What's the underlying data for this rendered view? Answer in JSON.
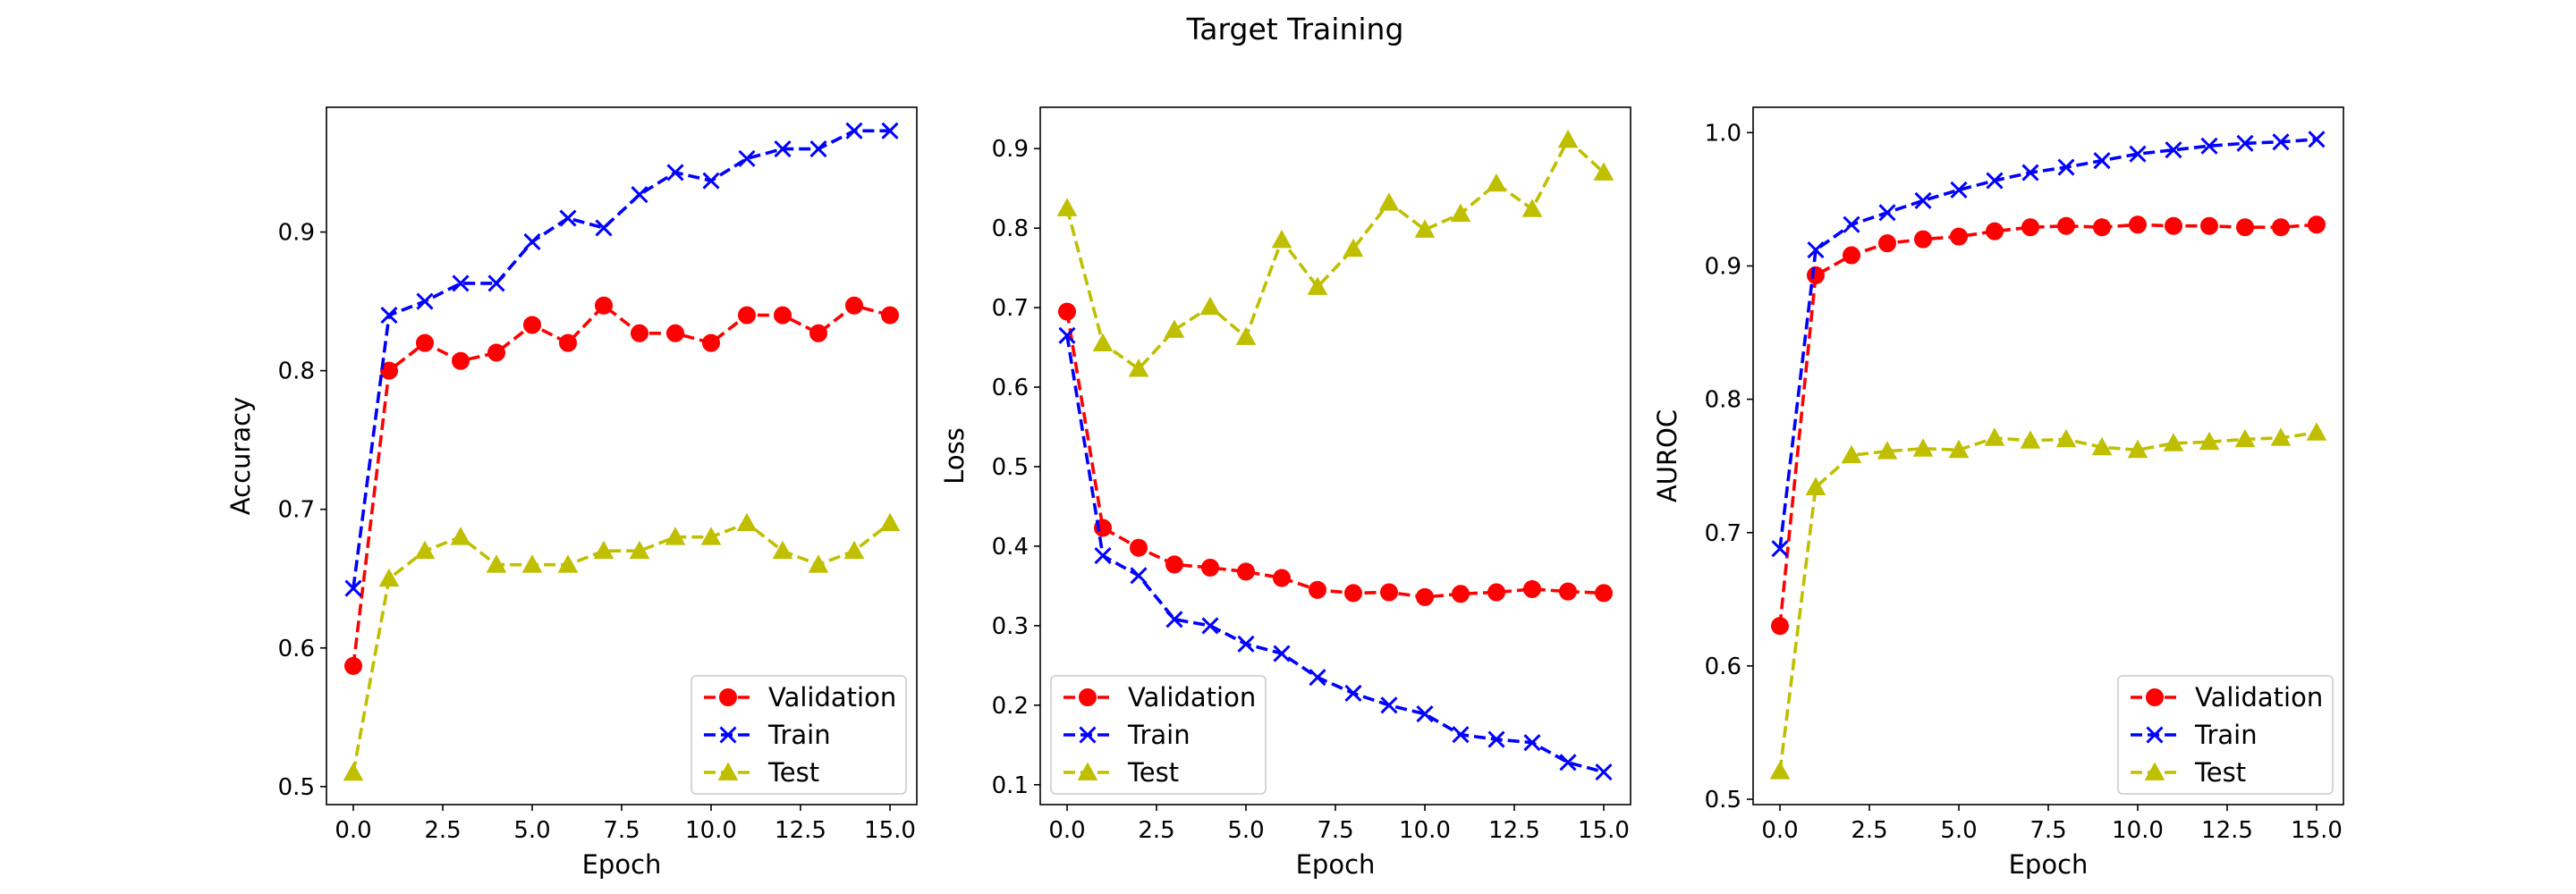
{
  "title": "Target Training",
  "colors": {
    "Validation": "#ff0000",
    "Train": "#0000ff",
    "Test": "#bfbf00"
  },
  "chart_data": [
    {
      "type": "line",
      "xlabel": "Epoch",
      "ylabel": "Accuracy",
      "xlim": [
        -0.75,
        15.75
      ],
      "ylim": [
        0.487,
        0.99
      ],
      "xticks": [
        "0.0",
        "2.5",
        "5.0",
        "7.5",
        "10.0",
        "12.5",
        "15.0"
      ],
      "yticks": [
        "0.5",
        "0.6",
        "0.7",
        "0.8",
        "0.9"
      ],
      "legend": "lower-right",
      "x": [
        0,
        1,
        2,
        3,
        4,
        5,
        6,
        7,
        8,
        9,
        10,
        11,
        12,
        13,
        14,
        15
      ],
      "series": [
        {
          "name": "Validation",
          "marker": "circle",
          "values": [
            0.587,
            0.8,
            0.82,
            0.807,
            0.813,
            0.833,
            0.82,
            0.847,
            0.827,
            0.827,
            0.82,
            0.84,
            0.84,
            0.827,
            0.847,
            0.84
          ]
        },
        {
          "name": "Train",
          "marker": "x",
          "values": [
            0.643,
            0.84,
            0.85,
            0.863,
            0.863,
            0.893,
            0.91,
            0.903,
            0.927,
            0.943,
            0.937,
            0.953,
            0.96,
            0.96,
            0.973,
            0.973
          ]
        },
        {
          "name": "Test",
          "marker": "triangle",
          "values": [
            0.51,
            0.65,
            0.67,
            0.68,
            0.66,
            0.66,
            0.66,
            0.67,
            0.67,
            0.68,
            0.68,
            0.69,
            0.67,
            0.66,
            0.67,
            0.69
          ]
        }
      ]
    },
    {
      "type": "line",
      "xlabel": "Epoch",
      "ylabel": "Loss",
      "xlim": [
        -0.75,
        15.75
      ],
      "ylim": [
        0.075,
        0.952
      ],
      "xticks": [
        "0.0",
        "2.5",
        "5.0",
        "7.5",
        "10.0",
        "12.5",
        "15.0"
      ],
      "yticks": [
        "0.1",
        "0.2",
        "0.3",
        "0.4",
        "0.5",
        "0.6",
        "0.7",
        "0.8",
        "0.9"
      ],
      "legend": "lower-left",
      "x": [
        0,
        1,
        2,
        3,
        4,
        5,
        6,
        7,
        8,
        9,
        10,
        11,
        12,
        13,
        14,
        15
      ],
      "series": [
        {
          "name": "Validation",
          "marker": "circle",
          "values": [
            0.695,
            0.423,
            0.398,
            0.377,
            0.373,
            0.368,
            0.36,
            0.345,
            0.341,
            0.342,
            0.336,
            0.34,
            0.342,
            0.346,
            0.343,
            0.341
          ]
        },
        {
          "name": "Train",
          "marker": "x",
          "values": [
            0.665,
            0.388,
            0.363,
            0.308,
            0.3,
            0.277,
            0.265,
            0.235,
            0.215,
            0.2,
            0.189,
            0.163,
            0.157,
            0.153,
            0.128,
            0.116
          ]
        },
        {
          "name": "Test",
          "marker": "triangle",
          "values": [
            0.825,
            0.655,
            0.623,
            0.672,
            0.701,
            0.663,
            0.785,
            0.726,
            0.774,
            0.832,
            0.798,
            0.818,
            0.856,
            0.824,
            0.911,
            0.87
          ]
        }
      ]
    },
    {
      "type": "line",
      "xlabel": "Epoch",
      "ylabel": "AUROC",
      "xlim": [
        -0.75,
        15.75
      ],
      "ylim": [
        0.496,
        1.019
      ],
      "xticks": [
        "0.0",
        "2.5",
        "5.0",
        "7.5",
        "10.0",
        "12.5",
        "15.0"
      ],
      "yticks": [
        "0.5",
        "0.6",
        "0.7",
        "0.8",
        "0.9",
        "1.0"
      ],
      "legend": "lower-right",
      "x": [
        0,
        1,
        2,
        3,
        4,
        5,
        6,
        7,
        8,
        9,
        10,
        11,
        12,
        13,
        14,
        15
      ],
      "series": [
        {
          "name": "Validation",
          "marker": "circle",
          "values": [
            0.63,
            0.893,
            0.908,
            0.917,
            0.92,
            0.922,
            0.926,
            0.929,
            0.93,
            0.929,
            0.931,
            0.93,
            0.93,
            0.929,
            0.929,
            0.931
          ]
        },
        {
          "name": "Train",
          "marker": "x",
          "values": [
            0.688,
            0.912,
            0.931,
            0.94,
            0.949,
            0.957,
            0.964,
            0.97,
            0.974,
            0.979,
            0.984,
            0.987,
            0.99,
            0.992,
            0.993,
            0.995
          ]
        },
        {
          "name": "Test",
          "marker": "triangle",
          "values": [
            0.521,
            0.734,
            0.758,
            0.761,
            0.763,
            0.762,
            0.771,
            0.769,
            0.77,
            0.764,
            0.762,
            0.767,
            0.768,
            0.77,
            0.771,
            0.775
          ]
        }
      ]
    }
  ]
}
